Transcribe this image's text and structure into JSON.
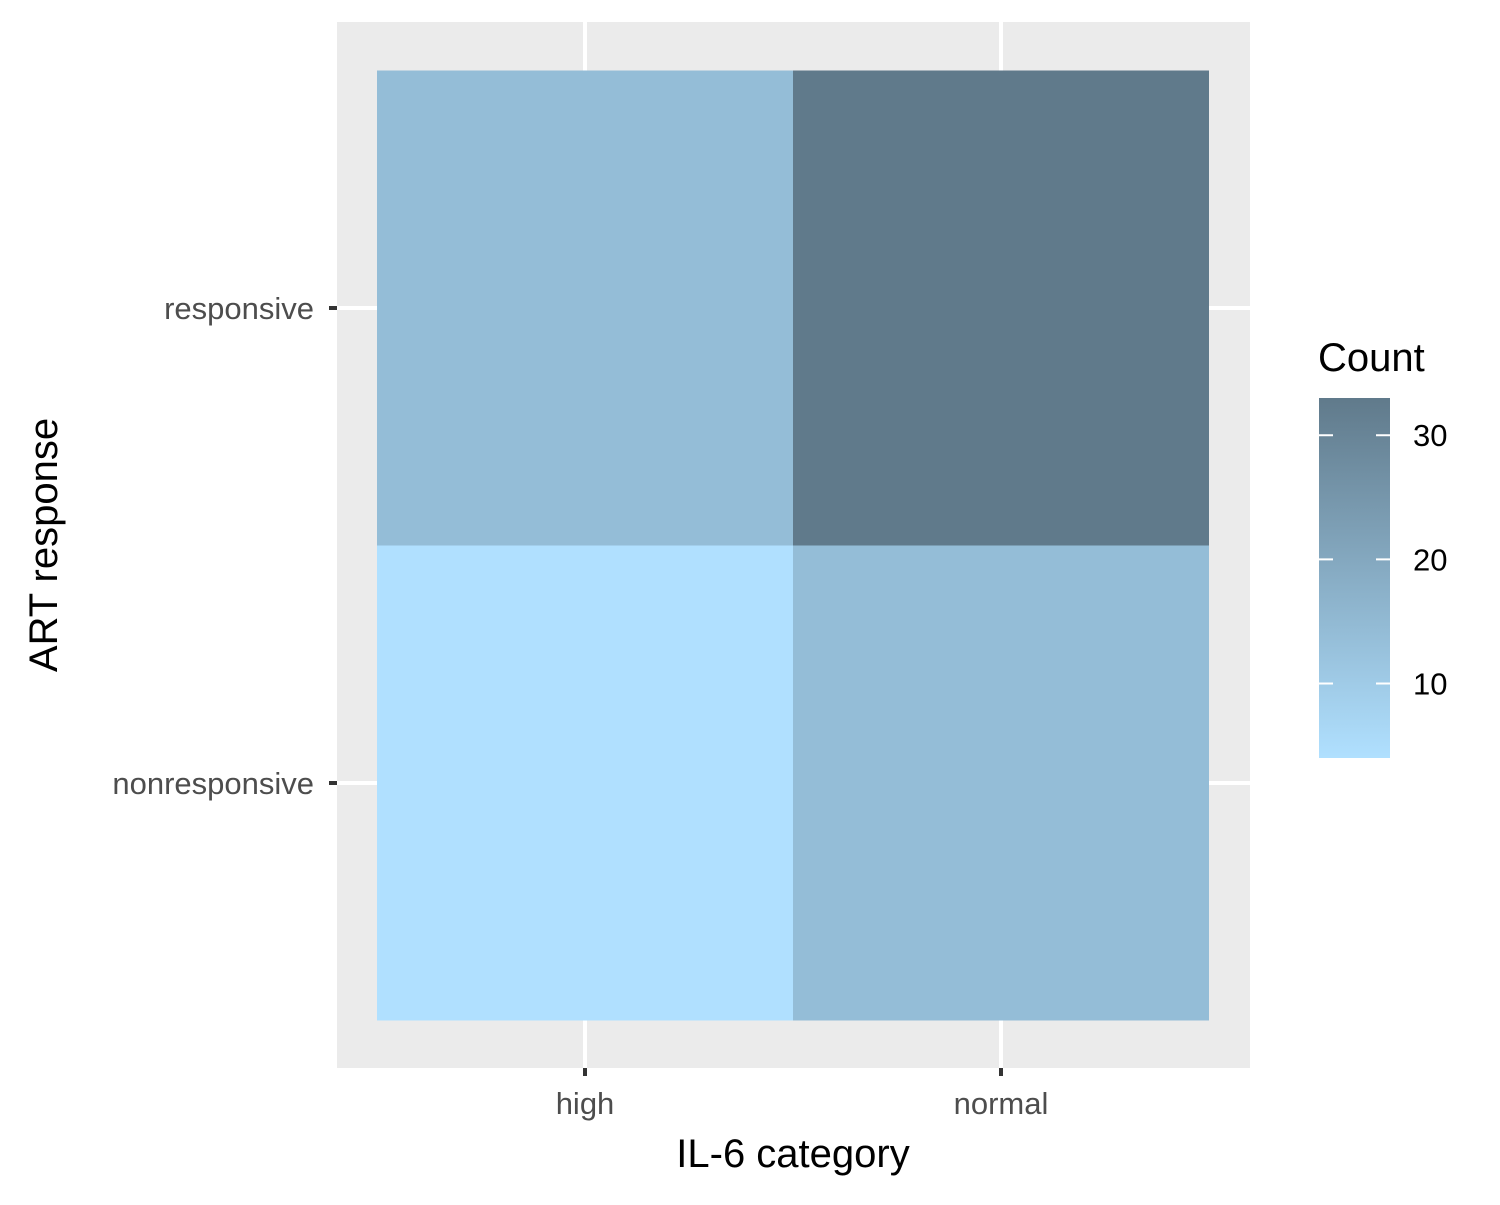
{
  "chart_data": {
    "type": "heatmap",
    "title": "",
    "xlabel": "IL-6 category",
    "ylabel": "ART response",
    "x_categories": [
      "high",
      "normal"
    ],
    "y_categories": [
      "nonresponsive",
      "responsive"
    ],
    "cells": [
      {
        "x": "high",
        "y": "responsive",
        "value": 14
      },
      {
        "x": "normal",
        "y": "responsive",
        "value": 33
      },
      {
        "x": "high",
        "y": "nonresponsive",
        "value": 4
      },
      {
        "x": "normal",
        "y": "nonresponsive",
        "value": 14
      }
    ],
    "legend": {
      "title": "Count",
      "ticks": [
        10,
        20,
        30
      ],
      "range": [
        4,
        33
      ],
      "low_color": "#b0e0ff",
      "high_color": "#607a8b",
      "position": "right"
    },
    "panel_background": "#ebebeb",
    "grid_color": "#ffffff",
    "grid": true
  }
}
